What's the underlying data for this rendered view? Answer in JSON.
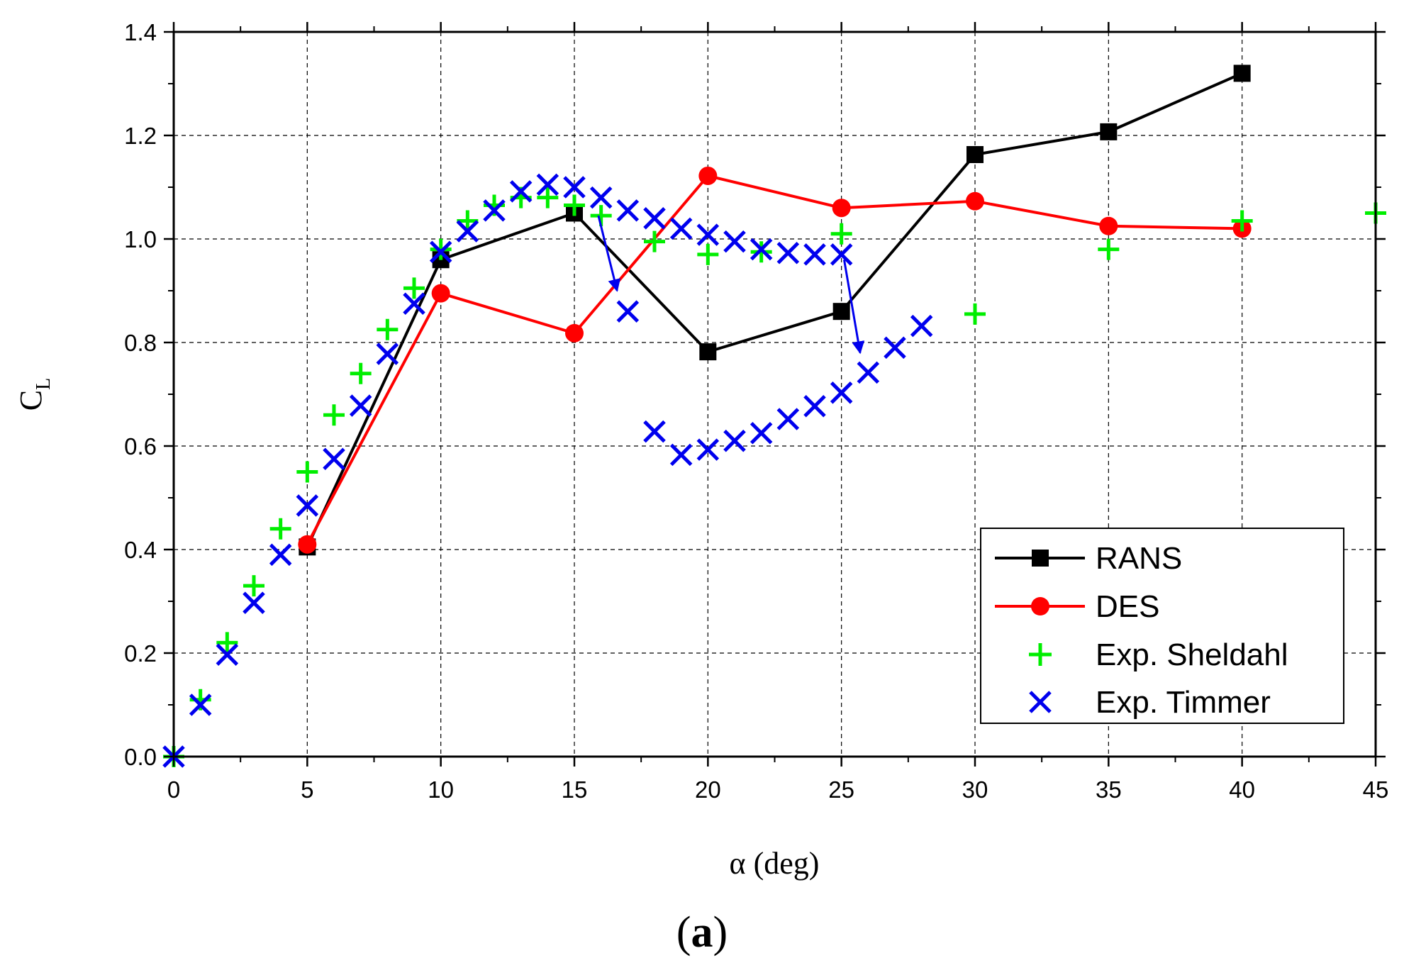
{
  "chart_data": {
    "type": "line",
    "xlabel": "α (deg)",
    "ylabel_main": "C",
    "ylabel_sub": "L",
    "xlim": [
      0,
      45
    ],
    "ylim": [
      0.0,
      1.4
    ],
    "xticks": [
      "0",
      "5",
      "10",
      "15",
      "20",
      "25",
      "30",
      "35",
      "40",
      "45"
    ],
    "yticks": [
      "0.0",
      "0.2",
      "0.4",
      "0.6",
      "0.8",
      "1.0",
      "1.2",
      "1.4"
    ],
    "xtick_values": [
      0,
      5,
      10,
      15,
      20,
      25,
      30,
      35,
      40,
      45
    ],
    "ytick_values": [
      0.0,
      0.2,
      0.4,
      0.6,
      0.8,
      1.0,
      1.2,
      1.4
    ],
    "grid": true,
    "legend_position": "bottom-right",
    "caption_open": "(",
    "caption_letter": "a",
    "caption_close": ")",
    "series": [
      {
        "name": "RANS",
        "style": "line-square",
        "color": "#000000",
        "x": [
          5,
          10,
          15,
          20,
          25,
          30,
          35,
          40
        ],
        "y": [
          0.405,
          0.96,
          1.05,
          0.782,
          0.86,
          1.163,
          1.207,
          1.32
        ]
      },
      {
        "name": "DES",
        "style": "line-circle",
        "color": "#ff0000",
        "x": [
          5,
          10,
          15,
          20,
          25,
          30,
          35,
          40
        ],
        "y": [
          0.41,
          0.895,
          0.818,
          1.122,
          1.06,
          1.073,
          1.025,
          1.02
        ]
      },
      {
        "name": "Exp. Sheldahl",
        "style": "plus",
        "color": "#00ee00",
        "x": [
          0,
          1,
          2,
          3,
          4,
          5,
          6,
          7,
          8,
          9,
          10,
          11,
          12,
          13,
          14,
          15,
          16,
          18,
          20,
          22,
          25,
          30,
          35,
          40,
          45
        ],
        "y": [
          0.0,
          0.11,
          0.22,
          0.33,
          0.44,
          0.55,
          0.66,
          0.74,
          0.825,
          0.905,
          0.98,
          1.035,
          1.065,
          1.08,
          1.08,
          1.065,
          1.045,
          0.995,
          0.97,
          0.975,
          1.01,
          0.855,
          0.98,
          1.035,
          1.05
        ]
      },
      {
        "name": "Exp. Timmer",
        "style": "cross",
        "color": "#0000ee",
        "x": [
          0,
          1,
          2,
          3,
          4,
          5,
          6,
          7,
          8,
          9,
          10,
          11,
          12,
          13,
          14,
          15,
          16,
          17,
          17,
          18,
          19,
          20,
          21,
          22,
          23,
          24,
          25,
          18,
          19,
          20,
          21,
          22,
          23,
          24,
          25,
          26,
          27,
          28
        ],
        "y": [
          0.0,
          0.1,
          0.197,
          0.297,
          0.39,
          0.485,
          0.575,
          0.678,
          0.778,
          0.875,
          0.975,
          1.015,
          1.055,
          1.092,
          1.105,
          1.1,
          1.08,
          1.055,
          0.86,
          1.04,
          1.02,
          1.008,
          0.995,
          0.98,
          0.973,
          0.97,
          0.97,
          0.628,
          0.583,
          0.593,
          0.61,
          0.625,
          0.652,
          0.677,
          0.703,
          0.742,
          0.79,
          0.832
        ]
      }
    ],
    "annotations": [
      {
        "type": "arrow",
        "from": [
          15.9,
          1.045
        ],
        "to": [
          16.6,
          0.9
        ],
        "color": "#0000ee"
      },
      {
        "type": "arrow",
        "from": [
          25.1,
          0.96
        ],
        "to": [
          25.7,
          0.78
        ],
        "color": "#0000ee"
      }
    ]
  }
}
